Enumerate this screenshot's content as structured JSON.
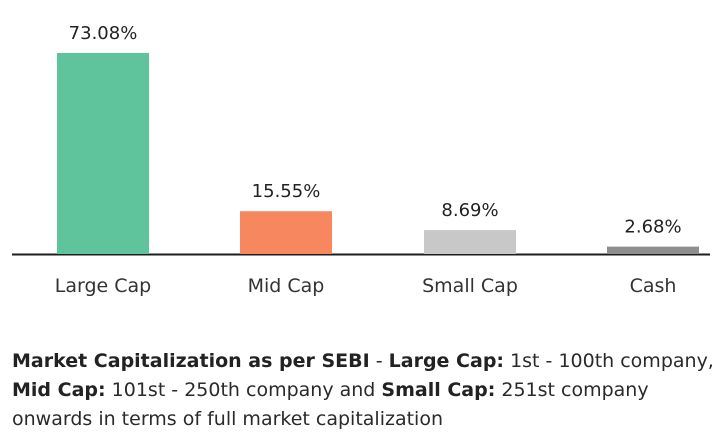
{
  "chart_data": {
    "type": "bar",
    "categories": [
      "Large Cap",
      "Mid Cap",
      "Small Cap",
      "Cash"
    ],
    "values": [
      73.08,
      15.55,
      8.69,
      2.68
    ],
    "value_labels": [
      "73.08%",
      "15.55%",
      "8.69%",
      "2.68%"
    ],
    "colors": [
      "#5fc49c",
      "#f7875e",
      "#c8c8c8",
      "#8e8e8e"
    ],
    "title": "",
    "xlabel": "",
    "ylabel": "",
    "ylim": [
      0,
      73.08
    ],
    "grid": false,
    "legend": "none"
  },
  "footnote": {
    "t1": "Market Capitalization as per SEBI",
    "t2": " - ",
    "t3": "Large Cap:",
    "t4": " 1st - 100th company, ",
    "t5": "Mid Cap:",
    "t6": " 101st - 250th company and ",
    "t7": "Small Cap:",
    "t8": " 251st company onwards in terms of full market capitalization"
  }
}
